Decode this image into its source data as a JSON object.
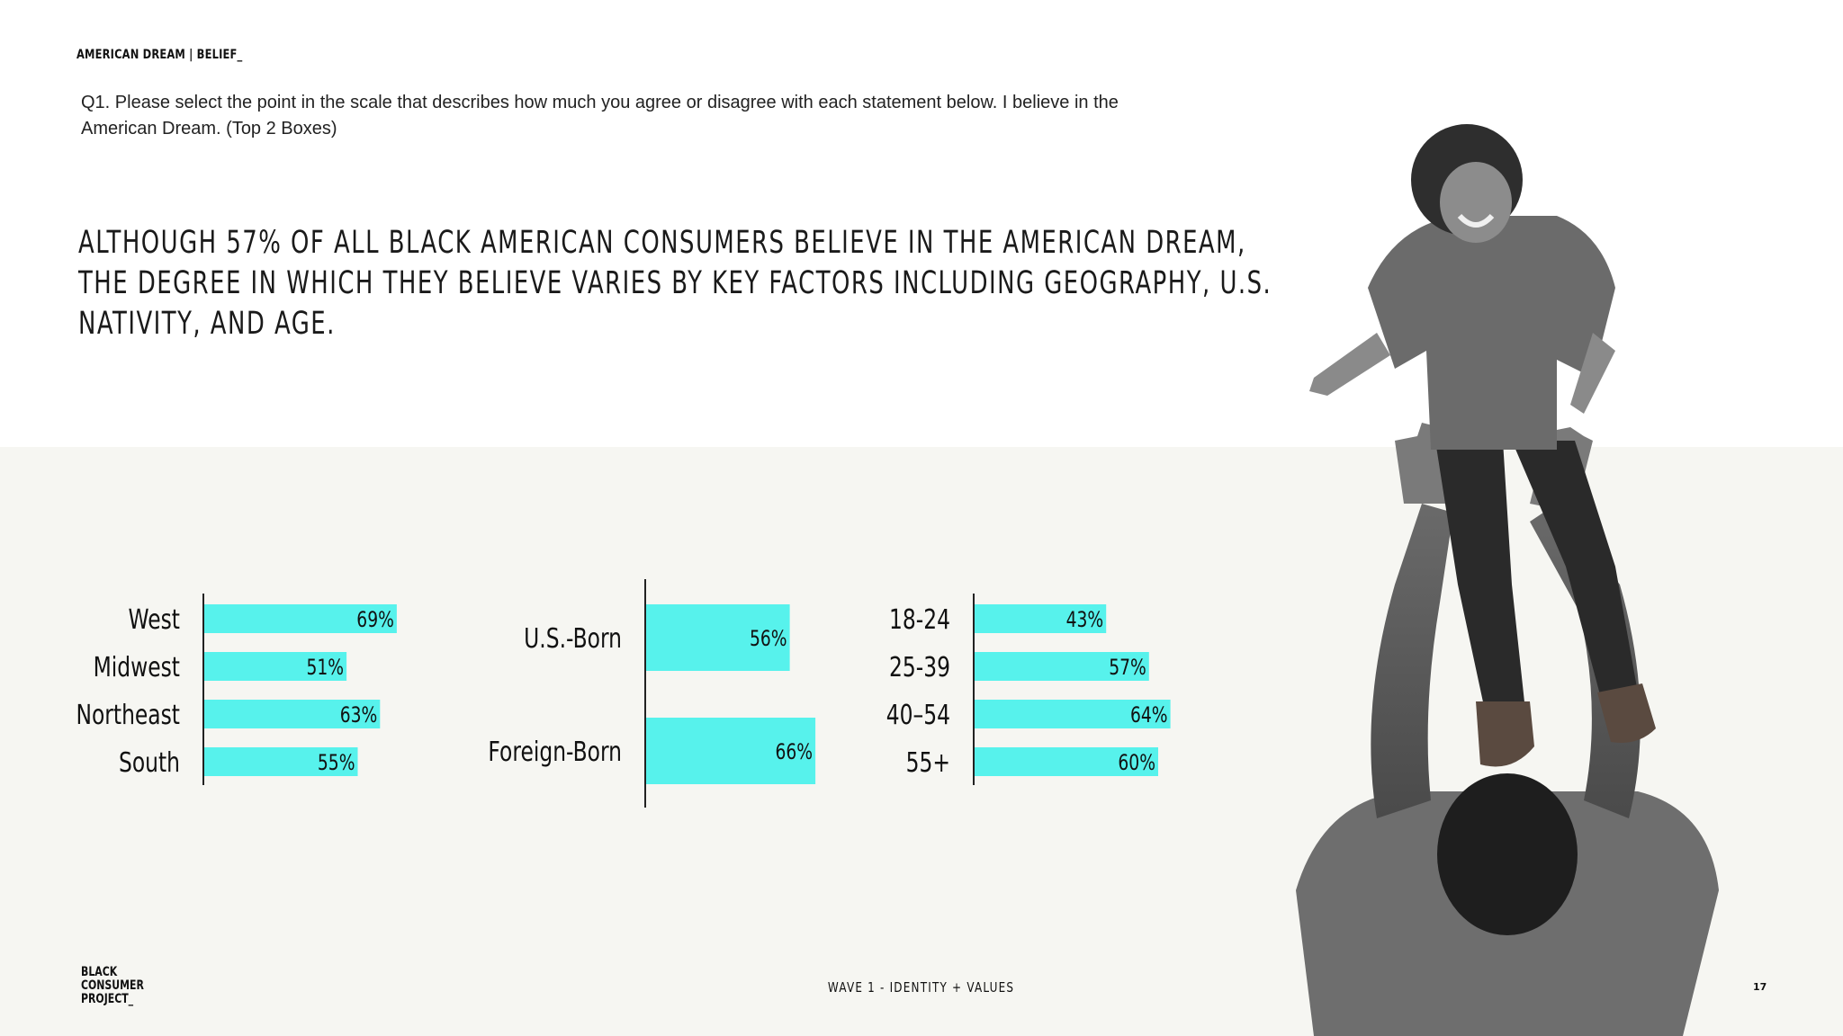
{
  "header": {
    "section_label": "AMERICAN DREAM | BELIEF_",
    "question": "Q1. Please select the point in the scale that describes how much you agree or disagree with each statement below. I believe in the American Dream. (Top 2 Boxes)",
    "headline_lines": [
      "ALTHOUGH 57% OF ALL BLACK AMERICAN CONSUMERS BELIEVE IN THE AMERICAN DREAM,",
      "THE DEGREE IN WHICH THEY BELIEVE VARIES BY KEY FACTORS INCLUDING GEOGRAPHY, U.S.",
      "NATIVITY, AND AGE."
    ]
  },
  "colors": {
    "bar": "#57f2ec",
    "axis": "#222222",
    "lower_background": "#f6f6f2"
  },
  "chart_data": [
    {
      "type": "bar",
      "orientation": "horizontal",
      "categories": [
        "West",
        "Midwest",
        "Northeast",
        "South"
      ],
      "values": [
        69,
        51,
        63,
        55
      ],
      "value_labels": [
        "69%",
        "51%",
        "63%",
        "55%"
      ],
      "xlim": [
        0,
        100
      ]
    },
    {
      "type": "bar",
      "orientation": "horizontal",
      "categories": [
        "U.S.-Born",
        "Foreign-Born"
      ],
      "values": [
        56,
        66
      ],
      "value_labels": [
        "56%",
        "66%"
      ],
      "xlim": [
        0,
        100
      ]
    },
    {
      "type": "bar",
      "orientation": "horizontal",
      "categories": [
        "18-24",
        "25-39",
        "40–54",
        "55+"
      ],
      "values": [
        43,
        57,
        64,
        60
      ],
      "value_labels": [
        "43%",
        "57%",
        "64%",
        "60%"
      ],
      "xlim": [
        0,
        100
      ]
    }
  ],
  "photo": {
    "description_icon": "photo-icon"
  },
  "footer": {
    "logo_lines": [
      "BLACK",
      "CONSUMER",
      "PROJECT_"
    ],
    "center_text": "WAVE 1 - IDENTITY + VALUES",
    "page_number": "17"
  }
}
